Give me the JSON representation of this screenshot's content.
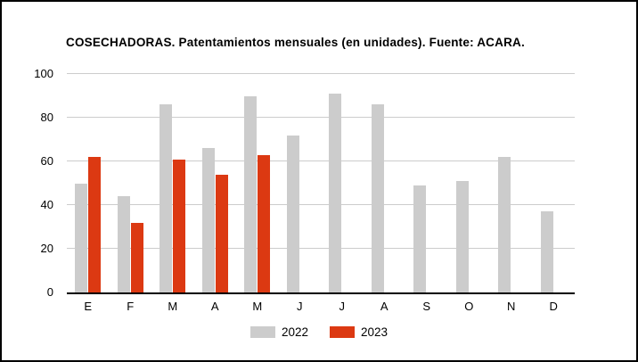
{
  "title": "COSECHADORAS. Patentamientos mensuales (en unidades). Fuente: ACARA.",
  "chart_data": {
    "type": "bar",
    "title": "COSECHADORAS. Patentamientos mensuales (en unidades). Fuente: ACARA.",
    "categories": [
      "E",
      "F",
      "M",
      "A",
      "M",
      "J",
      "J",
      "A",
      "S",
      "O",
      "N",
      "D"
    ],
    "series": [
      {
        "name": "2022",
        "color": "#cccccc",
        "values": [
          50,
          44,
          86,
          66,
          90,
          72,
          91,
          86,
          49,
          51,
          62,
          37
        ]
      },
      {
        "name": "2023",
        "color": "#dc3912",
        "values": [
          62,
          32,
          61,
          54,
          63,
          null,
          null,
          null,
          null,
          null,
          null,
          null
        ]
      }
    ],
    "xlabel": "",
    "ylabel": "",
    "ylim": [
      0,
      100
    ],
    "yticks": [
      0,
      20,
      40,
      60,
      80,
      100
    ],
    "grid": true,
    "gridline_color": "#cccccc",
    "axis_color": "#000000",
    "legend_position": "bottom"
  },
  "legend": {
    "items": [
      {
        "label": "2022",
        "color": "#cccccc"
      },
      {
        "label": "2023",
        "color": "#dc3912"
      }
    ]
  }
}
